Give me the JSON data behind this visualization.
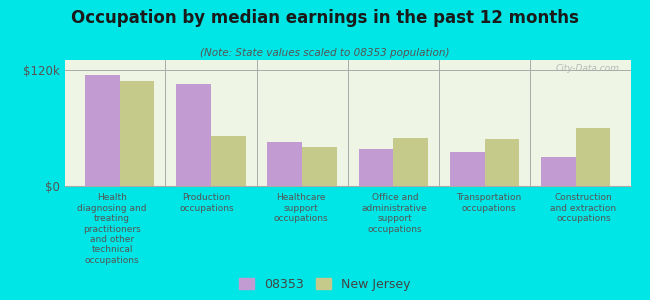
{
  "title": "Occupation by median earnings in the past 12 months",
  "subtitle": "(Note: State values scaled to 08353 population)",
  "categories": [
    "Health\ndiagnosing and\ntreating\npractitioners\nand other\ntechnical\noccupations",
    "Production\noccupations",
    "Healthcare\nsupport\noccupations",
    "Office and\nadministrative\nsupport\noccupations",
    "Transportation\noccupations",
    "Construction\nand extraction\noccupations"
  ],
  "values_08353": [
    115000,
    105000,
    45000,
    38000,
    35000,
    30000
  ],
  "values_nj": [
    108000,
    52000,
    40000,
    50000,
    48000,
    60000
  ],
  "ylim": [
    0,
    130000
  ],
  "ytick_labels": [
    "$0",
    "$120k"
  ],
  "ytick_values": [
    0,
    120000
  ],
  "bar_color_08353": "#c39bd3",
  "bar_color_nj": "#c5c98a",
  "background_color": "#00e5e5",
  "plot_facecolor": "#eef5e5",
  "legend_label_08353": "08353",
  "legend_label_nj": "New Jersey",
  "watermark": "City-Data.com",
  "title_fontsize": 12,
  "subtitle_fontsize": 7.5,
  "tick_label_fontsize": 6.5,
  "bar_width": 0.38
}
